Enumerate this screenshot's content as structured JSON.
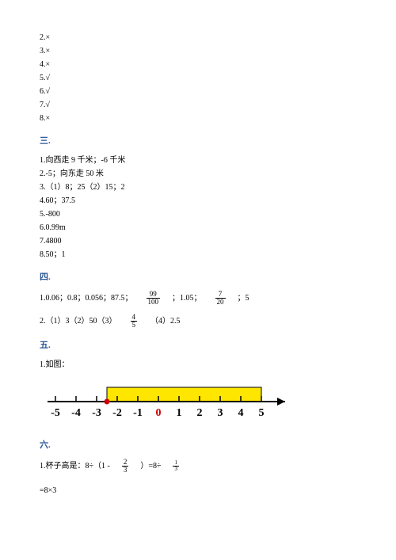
{
  "section2": {
    "items": [
      "2.×",
      "3.×",
      "4.×",
      "5.√",
      "6.√",
      "7.√",
      "8.×"
    ]
  },
  "section3": {
    "header": "三.",
    "items": [
      "1.向西走 9 千米；-6 千米",
      "2.-5；向东走 50 米",
      "3.（1）8；25（2）15；2",
      "4.60；37.5",
      "5.-800",
      "6.0.99m",
      "7.4800",
      "8.50；1"
    ]
  },
  "section4": {
    "header": "四.",
    "line1_parts": {
      "p1": "1.0.06；0.8；0.056；87.5；",
      "frac1_num": "99",
      "frac1_den": "100",
      "p2": "；1.05；",
      "frac2_num": "7",
      "frac2_den": "20",
      "p3": "；5"
    },
    "line2_parts": {
      "p1": "2.（1）3（2）50（3）",
      "frac_num": "4",
      "frac_den": "5",
      "p2": "（4）2.5"
    }
  },
  "section5": {
    "header": "五.",
    "item1": "1.如图：",
    "numline": {
      "ticks": [
        "-5",
        "-4",
        "-3",
        "-2",
        "-1",
        "0",
        "1",
        "2",
        "3",
        "4",
        "5"
      ],
      "fill_start": -2.5,
      "fill_end": 5,
      "fill_color": "#ffe600",
      "zero_color": "#cc0000",
      "font_size": 14
    }
  },
  "section6": {
    "header": "六.",
    "line1_parts": {
      "p1": "1.杯子高是：8÷（1 -",
      "frac1_num": "2",
      "frac1_den": "3",
      "p2": "）=8÷",
      "frac2_num": "1",
      "frac2_den": "3"
    },
    "line2": "=8×3"
  }
}
